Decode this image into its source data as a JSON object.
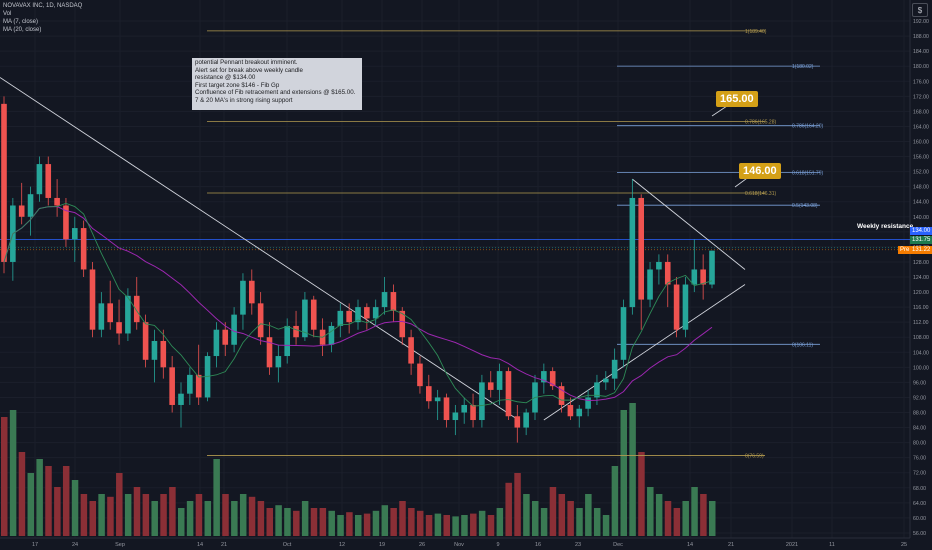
{
  "header": {
    "symbol_line": "NOVAVAX INC, 1D, NASDAQ",
    "vol_label": "Vol",
    "ma_fast_label": "MA (7, close)",
    "ma_slow_label": "MA (20, close)"
  },
  "note": {
    "lines": [
      "potential Pennant breakout imminent.",
      "Alert set for break above  weekly candle",
      "resistance @ $134.00",
      "First target zone $146 - Fib Gp",
      "Confluence of Fib retracement and extensions @ $165.00.",
      "7 & 20 MA's in strong rising support"
    ]
  },
  "callouts": {
    "target_high": "165.00",
    "target_low": "146.00"
  },
  "weekly_resistance_label": "Weekly resistance",
  "price_tags": {
    "resistance": "134.00",
    "ma": "131.75",
    "last": "131.22",
    "last_prefix": "Pre"
  },
  "colors": {
    "up": "#26a69a",
    "down": "#ef5350",
    "up_vol": "#3a7a53",
    "down_vol": "#8b2f36",
    "ma_fast": "#2e8b57",
    "ma_slow": "#9c27b0",
    "fib": "#7aa0d8",
    "fib_gold": "#b29a4f"
  },
  "chart_data": {
    "type": "candlestick",
    "symbol": "NOVAVAX INC",
    "timeframe": "1D",
    "exchange": "NASDAQ",
    "y_axis": {
      "min": 52,
      "max": 196,
      "ticks": [
        56,
        60,
        64,
        68,
        72,
        76,
        80,
        84,
        88,
        92,
        96,
        100,
        104,
        108,
        112,
        116,
        120,
        124,
        128,
        132,
        136,
        140,
        144,
        148,
        152,
        156,
        160,
        164,
        168,
        172,
        176,
        180,
        184,
        188,
        192
      ]
    },
    "x_tick_labels": [
      "17",
      "24",
      "Sep",
      "14",
      "21",
      "Oct",
      "12",
      "19",
      "26",
      "Nov",
      "9",
      "16",
      "23",
      "Dec",
      "14",
      "21",
      "2021",
      "11",
      "25"
    ],
    "weekly_resistance": 134.0,
    "fib_levels": [
      {
        "label": "1(189.40)",
        "value": 189.4
      },
      {
        "label": "1(180.02)",
        "value": 180.02
      },
      {
        "label": "0.786(165.28)",
        "value": 165.28
      },
      {
        "label": "0.786(164.20)",
        "value": 164.2
      },
      {
        "label": "0.618(151.79)",
        "value": 151.79
      },
      {
        "label": "0.618(146.31)",
        "value": 146.31
      },
      {
        "label": "0.5(143.08)",
        "value": 143.08
      },
      {
        "label": "0(106.11)",
        "value": 106.11
      },
      {
        "label": "0(76.59)",
        "value": 76.59
      }
    ],
    "candles": [
      [
        170,
        172,
        125,
        128
      ],
      [
        128,
        145,
        123,
        143
      ],
      [
        143,
        149,
        138,
        140
      ],
      [
        140,
        148,
        135,
        146
      ],
      [
        146,
        156,
        144,
        154
      ],
      [
        154,
        156,
        143,
        145
      ],
      [
        145,
        150,
        140,
        143
      ],
      [
        143,
        145,
        132,
        134
      ],
      [
        134,
        140,
        128,
        137
      ],
      [
        137,
        139,
        124,
        126
      ],
      [
        126,
        128,
        108,
        110
      ],
      [
        110,
        120,
        108,
        117
      ],
      [
        117,
        123,
        110,
        112
      ],
      [
        112,
        118,
        106,
        109
      ],
      [
        109,
        121,
        107,
        119
      ],
      [
        119,
        124,
        110,
        112
      ],
      [
        112,
        114,
        100,
        102
      ],
      [
        102,
        110,
        96,
        107
      ],
      [
        107,
        110,
        97,
        100
      ],
      [
        100,
        103,
        88,
        90
      ],
      [
        90,
        96,
        84,
        93
      ],
      [
        93,
        100,
        90,
        98
      ],
      [
        98,
        106,
        90,
        92
      ],
      [
        92,
        104,
        91,
        103
      ],
      [
        103,
        112,
        100,
        110
      ],
      [
        110,
        112,
        103,
        106
      ],
      [
        106,
        116,
        104,
        114
      ],
      [
        114,
        125,
        110,
        123
      ],
      [
        123,
        126,
        114,
        117
      ],
      [
        117,
        120,
        106,
        108
      ],
      [
        108,
        112,
        98,
        100
      ],
      [
        100,
        106,
        96,
        103
      ],
      [
        103,
        113,
        101,
        111
      ],
      [
        111,
        115,
        106,
        108
      ],
      [
        108,
        120,
        107,
        118
      ],
      [
        118,
        119,
        108,
        110
      ],
      [
        110,
        113,
        103,
        106
      ],
      [
        106,
        112,
        104,
        111
      ],
      [
        111,
        117,
        108,
        115
      ],
      [
        115,
        117,
        109,
        112
      ],
      [
        112,
        118,
        110,
        116
      ],
      [
        116,
        117,
        110,
        113
      ],
      [
        113,
        118,
        111,
        116
      ],
      [
        116,
        124,
        114,
        120
      ],
      [
        120,
        122,
        112,
        115
      ],
      [
        115,
        116,
        106,
        108
      ],
      [
        108,
        110,
        98,
        101
      ],
      [
        101,
        103,
        93,
        95
      ],
      [
        95,
        98,
        89,
        91
      ],
      [
        91,
        94,
        86,
        92
      ],
      [
        92,
        93,
        84,
        86
      ],
      [
        86,
        90,
        82,
        88
      ],
      [
        88,
        92,
        85,
        90
      ],
      [
        90,
        93,
        84,
        86
      ],
      [
        86,
        98,
        84,
        96
      ],
      [
        96,
        99,
        92,
        94
      ],
      [
        94,
        101,
        90,
        99
      ],
      [
        99,
        100,
        86,
        87
      ],
      [
        87,
        90,
        80,
        84
      ],
      [
        84,
        89,
        82,
        88
      ],
      [
        88,
        98,
        86,
        96
      ],
      [
        96,
        101,
        93,
        99
      ],
      [
        99,
        100,
        94,
        95
      ],
      [
        95,
        96,
        88,
        90
      ],
      [
        90,
        92,
        86,
        87
      ],
      [
        87,
        90,
        84,
        89
      ],
      [
        89,
        94,
        87,
        92
      ],
      [
        92,
        98,
        90,
        96
      ],
      [
        96,
        99,
        94,
        97
      ],
      [
        97,
        105,
        94,
        102
      ],
      [
        102,
        118,
        100,
        116
      ],
      [
        116,
        150,
        114,
        145
      ],
      [
        145,
        146,
        110,
        118
      ],
      [
        118,
        128,
        116,
        126
      ],
      [
        126,
        130,
        122,
        128
      ],
      [
        128,
        130,
        116,
        122
      ],
      [
        122,
        124,
        108,
        110
      ],
      [
        110,
        124,
        108,
        122
      ],
      [
        122,
        134,
        120,
        126
      ],
      [
        126,
        130,
        118,
        122
      ],
      [
        122,
        131,
        121,
        131
      ]
    ],
    "volume_max_note": "volume pane bars, relative heights only"
  }
}
